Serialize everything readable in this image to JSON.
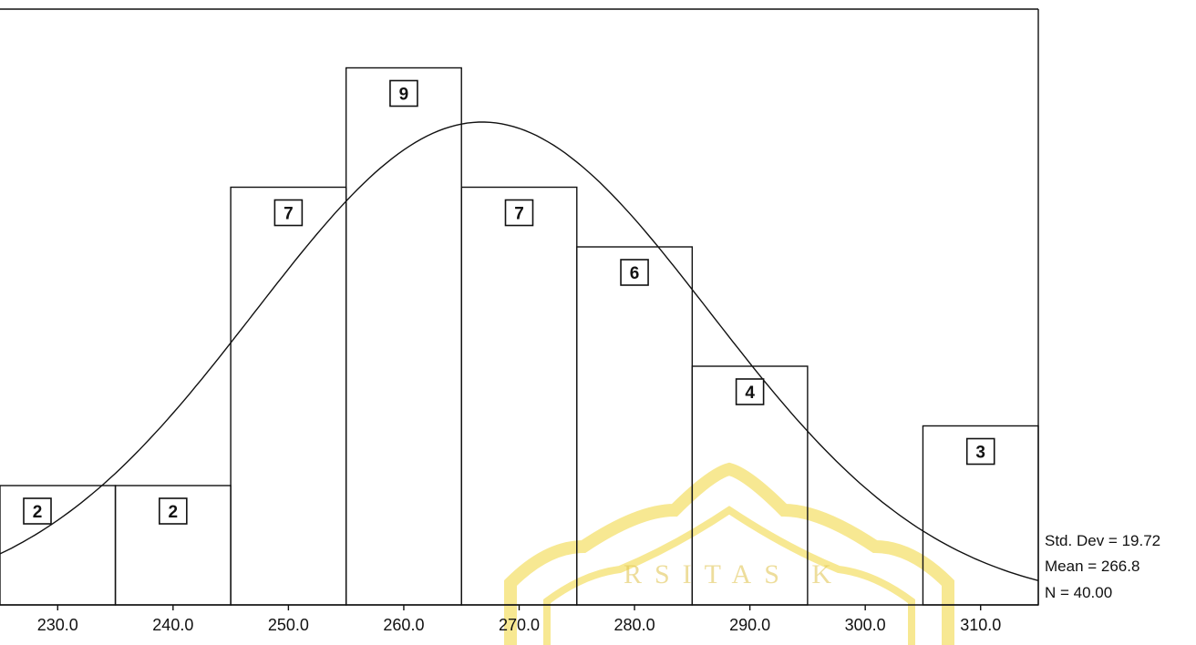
{
  "chart_data": {
    "type": "bar",
    "subtype": "histogram",
    "bin_width": 10,
    "bins": [
      {
        "center": 230,
        "count": 2
      },
      {
        "center": 240,
        "count": 2
      },
      {
        "center": 250,
        "count": 7
      },
      {
        "center": 260,
        "count": 9
      },
      {
        "center": 270,
        "count": 7
      },
      {
        "center": 280,
        "count": 6
      },
      {
        "center": 290,
        "count": 4
      },
      {
        "center": 300,
        "count": 0
      },
      {
        "center": 310,
        "count": 3
      }
    ],
    "x_ticks": [
      "230.0",
      "240.0",
      "250.0",
      "260.0",
      "270.0",
      "280.0",
      "290.0",
      "300.0",
      "310.0"
    ],
    "normal_curve": {
      "mean": 266.8,
      "std_dev": 19.72,
      "n": 40
    },
    "xlim": [
      225,
      315
    ],
    "ylim": [
      0,
      10
    ],
    "grid": false,
    "title": "",
    "xlabel": "",
    "ylabel": ""
  },
  "stats": {
    "std_dev_label": "Std. Dev = 19.72",
    "mean_label": "Mean = 266.8",
    "n_label": "N = 40.00"
  },
  "watermark": {
    "text": "RSITAS K",
    "color": "#f2d84a"
  }
}
